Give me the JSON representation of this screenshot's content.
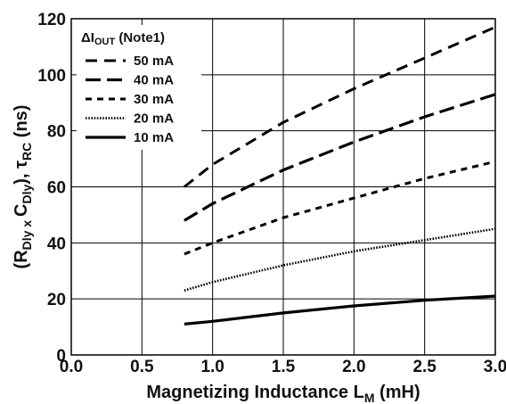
{
  "chart_data": {
    "type": "line",
    "xlabel": "Magnetizing Inductance L",
    "xlabel_sub": "M",
    "xlabel_unit": " (mH)",
    "ylabel_parts": [
      {
        "text": "(R",
        "sub": false
      },
      {
        "text": "Dly",
        "sub": true
      },
      {
        "text": " x ",
        "sub": true
      },
      {
        "text": "C",
        "sub": false
      },
      {
        "text": "Dly",
        "sub": true
      },
      {
        "text": "), ",
        "sub": false
      },
      {
        "text": "τ",
        "sub": false
      },
      {
        "text": "RC",
        "sub": true
      },
      {
        "text": " (ns)",
        "sub": false
      }
    ],
    "xlim": [
      0.0,
      3.0
    ],
    "ylim": [
      0,
      120
    ],
    "x_ticks": [
      "0.0",
      "0.5",
      "1.0",
      "1.5",
      "2.0",
      "2.5",
      "3.0"
    ],
    "y_ticks": [
      "0",
      "20",
      "40",
      "60",
      "80",
      "100",
      "120"
    ],
    "grid": true,
    "legend": {
      "placement": "top-left",
      "title": "ΔI",
      "title_sub": "OUT",
      "title_suffix": " (Note1)"
    },
    "x": [
      0.8,
      1.0,
      1.5,
      2.0,
      2.5,
      3.0
    ],
    "series": [
      {
        "name": "50 mA",
        "dash": "long",
        "values": [
          60,
          68,
          83,
          95,
          106,
          117
        ]
      },
      {
        "name": "40 mA",
        "dash": "longmed",
        "values": [
          48,
          54,
          66,
          76,
          85,
          93
        ]
      },
      {
        "name": "30 mA",
        "dash": "medium",
        "values": [
          36,
          40,
          49,
          56,
          63,
          69
        ]
      },
      {
        "name": "20 mA",
        "dash": "dotted",
        "values": [
          23,
          26,
          32,
          37,
          41,
          45
        ]
      },
      {
        "name": "10 mA",
        "dash": "solid",
        "values": [
          11,
          12,
          15,
          17.5,
          19.5,
          21
        ]
      }
    ]
  }
}
